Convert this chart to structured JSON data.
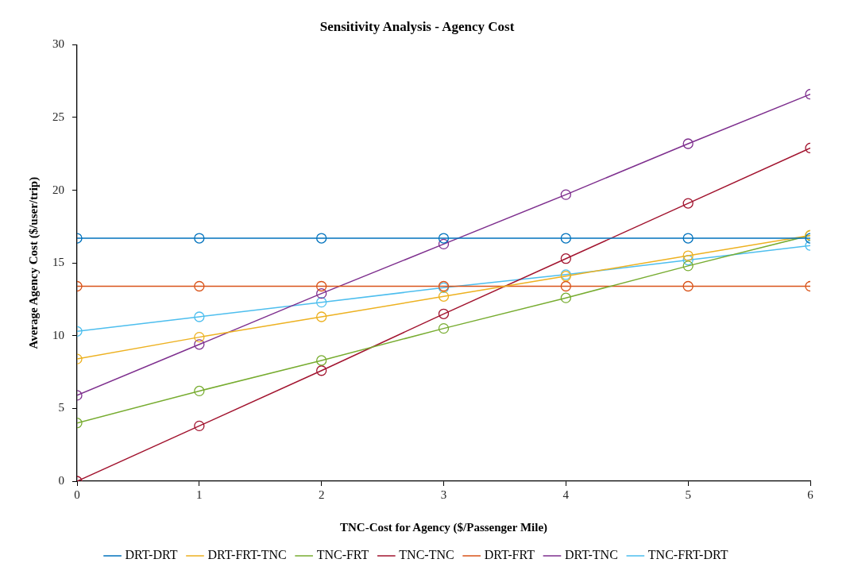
{
  "chart_data": {
    "type": "line",
    "title": "Sensitivity Analysis - Agency Cost",
    "xlabel": "TNC-Cost for Agency ($/Passenger Mile)",
    "ylabel": "Average Agency Cost ($/user/trip)",
    "x": [
      0,
      1,
      2,
      3,
      4,
      5,
      6
    ],
    "xlim": [
      0,
      6
    ],
    "xticks": [
      0,
      1,
      2,
      3,
      4,
      5,
      6
    ],
    "ylim": [
      0,
      30
    ],
    "yticks": [
      0,
      5,
      10,
      15,
      20,
      25,
      30
    ],
    "grid": false,
    "legend": "bottom",
    "marker": "circle",
    "line_style": "solid",
    "series": [
      {
        "name": "DRT-DRT",
        "color": "#0072bd",
        "values": [
          16.7,
          16.7,
          16.7,
          16.7,
          16.7,
          16.7,
          16.7
        ]
      },
      {
        "name": "DRT-FRT-TNC",
        "color": "#edb120",
        "values": [
          8.4,
          9.9,
          11.3,
          12.7,
          14.1,
          15.5,
          16.9
        ]
      },
      {
        "name": "TNC-FRT",
        "color": "#77ac30",
        "values": [
          4.0,
          6.2,
          8.3,
          10.5,
          12.6,
          14.8,
          16.9
        ]
      },
      {
        "name": "TNC-TNC",
        "color": "#a2142f",
        "values": [
          0,
          3.8,
          7.6,
          11.5,
          15.3,
          19.1,
          22.9
        ]
      },
      {
        "name": "DRT-FRT",
        "color": "#d95319",
        "values": [
          13.4,
          13.4,
          13.4,
          13.4,
          13.4,
          13.4,
          13.4
        ]
      },
      {
        "name": "DRT-TNC",
        "color": "#7e2f8e",
        "values": [
          5.9,
          9.4,
          12.9,
          16.3,
          19.7,
          23.2,
          26.6
        ]
      },
      {
        "name": "TNC-FRT-DRT",
        "color": "#4dbeee",
        "values": [
          10.3,
          11.3,
          12.3,
          13.3,
          14.2,
          15.2,
          16.2
        ]
      }
    ]
  }
}
